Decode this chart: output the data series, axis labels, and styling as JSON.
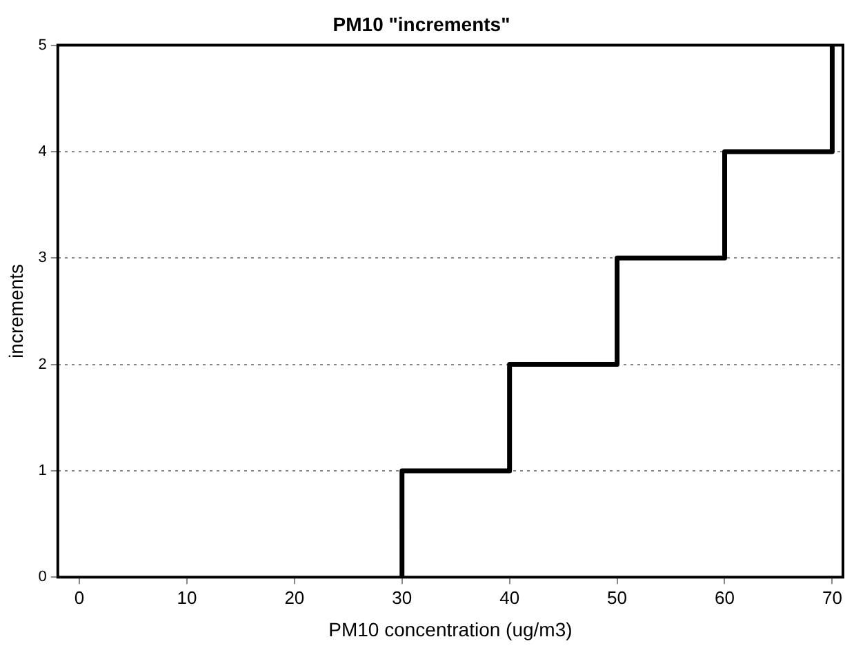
{
  "chart_data": {
    "type": "step",
    "title": "PM10 \"increments\"",
    "xlabel": "PM10 concentration (ug/m3)",
    "ylabel": "increments",
    "series": [
      {
        "color": "#000000",
        "x": [
          30,
          30,
          40,
          50,
          60,
          70
        ],
        "values": [
          0,
          1,
          2,
          3,
          4,
          5
        ]
      }
    ],
    "xlim": [
      -2,
      71
    ],
    "xticks": [
      0,
      10,
      20,
      30,
      40,
      50,
      60,
      70
    ],
    "ylim": [
      0,
      5
    ],
    "yticks": [
      0,
      1,
      2,
      3,
      4,
      5
    ],
    "grid": "y",
    "legend": false,
    "marker": "none",
    "line_style": "solid"
  }
}
